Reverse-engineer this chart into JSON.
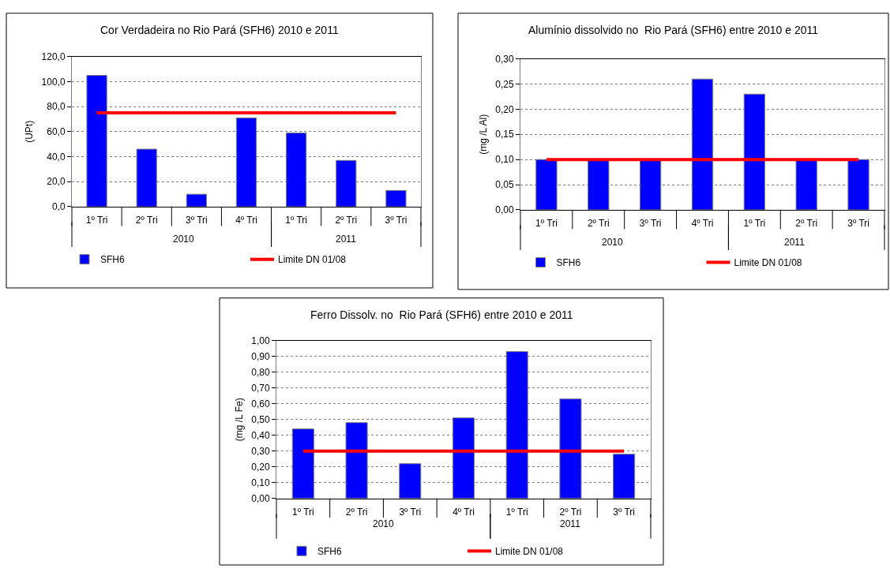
{
  "chart_data": [
    {
      "type": "bar",
      "title": "Cor Verdadeira no Rio Pará (SFH6) 2010 e 2011",
      "ylabel": "(UPt)",
      "categories": [
        "1º Tri",
        "2º Tri",
        "3º Tri",
        "4º Tri",
        "1º Tri",
        "2º Tri",
        "3º Tri"
      ],
      "annotations": [
        "2010",
        "2011"
      ],
      "series": [
        {
          "name": "SFH6",
          "color": "#0000ff",
          "values": [
            105,
            46,
            10,
            71,
            59,
            37,
            13
          ]
        },
        {
          "name": "Limite DN 01/08",
          "type": "line",
          "color": "#ff0000",
          "values": [
            75,
            75,
            75,
            75,
            75,
            75,
            75
          ]
        }
      ],
      "ylim": [
        0,
        120
      ],
      "yticks": [
        {
          "value": 0,
          "label": "0,0"
        },
        {
          "value": 20,
          "label": "20,0"
        },
        {
          "value": 40,
          "label": "40,0"
        },
        {
          "value": 60,
          "label": "60,0"
        },
        {
          "value": 80,
          "label": "80,0"
        },
        {
          "value": 100,
          "label": "100,0"
        },
        {
          "value": 120,
          "label": "120,0"
        }
      ],
      "grid": "y",
      "legend": "bottom"
    },
    {
      "type": "bar",
      "title": "Alumínio dissolvido no  Rio Pará (SFH6) entre 2010 e 2011",
      "ylabel": "(mg /L Al)",
      "categories": [
        "1º Tri",
        "2º Tri",
        "3º Tri",
        "4º Tri",
        "1º Tri",
        "2º Tri",
        "3º Tri"
      ],
      "annotations": [
        "2010",
        "2011"
      ],
      "series": [
        {
          "name": "SFH6",
          "color": "#0000ff",
          "values": [
            0.1,
            0.1,
            0.1,
            0.26,
            0.23,
            0.1,
            0.1
          ]
        },
        {
          "name": "Limite DN 01/08",
          "type": "line",
          "color": "#ff0000",
          "values": [
            0.1,
            0.1,
            0.1,
            0.1,
            0.1,
            0.1,
            0.1
          ]
        }
      ],
      "ylim": [
        0,
        0.3
      ],
      "yticks": [
        {
          "value": 0,
          "label": "0,00"
        },
        {
          "value": 0.05,
          "label": "0,05"
        },
        {
          "value": 0.1,
          "label": "0,10"
        },
        {
          "value": 0.15,
          "label": "0,15"
        },
        {
          "value": 0.2,
          "label": "0,20"
        },
        {
          "value": 0.25,
          "label": "0,25"
        },
        {
          "value": 0.3,
          "label": "0,30"
        }
      ],
      "grid": "y",
      "legend": "bottom"
    },
    {
      "type": "bar",
      "title": "Ferro Dissolv. no  Rio Pará (SFH6) entre 2010 e 2011",
      "ylabel": "(mg /L Fe)",
      "categories": [
        "1º Tri",
        "2º Tri",
        "3º Tri",
        "4º Tri",
        "1º Tri",
        "2º Tri",
        "3º Tri"
      ],
      "annotations": [
        "2010",
        "2011"
      ],
      "series": [
        {
          "name": "SFH6",
          "color": "#0000ff",
          "values": [
            0.44,
            0.48,
            0.22,
            0.51,
            0.93,
            0.63,
            0.28
          ]
        },
        {
          "name": "Limite DN 01/08",
          "type": "line",
          "color": "#ff0000",
          "values": [
            0.3,
            0.3,
            0.3,
            0.3,
            0.3,
            0.3,
            0.3
          ]
        }
      ],
      "ylim": [
        0,
        1.0
      ],
      "yticks": [
        {
          "value": 0,
          "label": "0,00"
        },
        {
          "value": 0.1,
          "label": "0,10"
        },
        {
          "value": 0.2,
          "label": "0,20"
        },
        {
          "value": 0.3,
          "label": "0,30"
        },
        {
          "value": 0.4,
          "label": "0,40"
        },
        {
          "value": 0.5,
          "label": "0,50"
        },
        {
          "value": 0.6,
          "label": "0,60"
        },
        {
          "value": 0.7,
          "label": "0,70"
        },
        {
          "value": 0.8,
          "label": "0,80"
        },
        {
          "value": 0.9,
          "label": "0,90"
        },
        {
          "value": 1.0,
          "label": "1,00"
        }
      ],
      "grid": "y",
      "legend": "bottom"
    }
  ]
}
